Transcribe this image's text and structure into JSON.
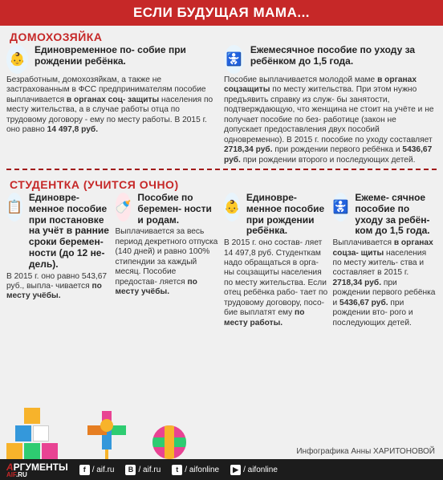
{
  "header": "ЕСЛИ БУДУЩАЯ МАМА...",
  "section1": {
    "title": "ДОМОХОЗЯЙКА",
    "items": [
      {
        "icon_bg": "#e8f4fc",
        "icon_glyph": "👶",
        "title": "Единовременное по-\nсобие при рождении\nребёнка.",
        "body": "Безработным, домохозяйкам,\nа также не застрахованным в ФСС\nпредпринимателям пособие\nвыплачивается",
        "bold1": " в органах соц-\nзащиты ",
        "body2": "населения по месту\nжительства, а в случае работы\nотца по трудовому договору - ему\nпо месту работы. В 2015 г. оно\nравно ",
        "bold2": "14 497,8 руб."
      },
      {
        "icon_bg": "#e8f4fc",
        "icon_glyph": "👶🏻",
        "title": "Ежемесячное пособие по уходу\nза ребёнком до 1,5 года.",
        "body": "Пособие выплачивается молодой маме\n",
        "bold1": "в органах соцзащиты",
        "body2": " по месту жительства.\nПри этом нужно предъявить справку из служ-\nбы занятости, подтверждающую, что женщина\nне стоит на учёте и не получает пособие по без-\nработице (закон не допускает предоставления\nдвух пособий одновременно). В 2015 г. пособие\nпо уходу составляет ",
        "bold2": "2718,34 руб.",
        "body3": " при рождении\nпервого ребёнка и ",
        "bold3": "5436,67 руб.",
        "body4": " при рождении\nвторого и последующих детей."
      }
    ]
  },
  "section2": {
    "title": "СТУДЕНТКА (УЧИТСЯ ОЧНО)",
    "items": [
      {
        "icon_bg": "#e8f4fc",
        "icon_glyph": "📋",
        "title": "Единовре-\nменное пособие\nпри постановке\nна учёт в ранние\nсроки беремен-\nности (до 12 не-\nдель).",
        "body": "В 2015 г. оно равно\n543,67 руб., выпла-\nчивается ",
        "bold1": "по месту\nучёбы."
      },
      {
        "icon_bg": "#ffe6ea",
        "icon_glyph": "🍼",
        "title": "Пособие\nпо беремен-\nности и родам.",
        "body": "Выплачивается\nза весь период\nдекретного отпуска\n(140 дней) и равно\n100% стипендии\nза каждый месяц.\nПособие предостав-\nляется ",
        "bold1": "по месту\nучёбы."
      },
      {
        "icon_bg": "#e8f4fc",
        "icon_glyph": "👶",
        "title": "Единовре-\nменное пособие\nпри рождении\nребёнка.",
        "body": "В 2015 г. оно состав-\nляет 14 497,8 руб.\nСтуденткам надо\nобращаться в орга-\nны соцзащиты\nнаселения по месту\nжительства. Если\nотец ребёнка рабо-\nтает по трудовому\nдоговору, посо-\nбие выплатят ему\n",
        "bold1": "по месту работы."
      },
      {
        "icon_bg": "#e8f4fc",
        "icon_glyph": "👶🏻",
        "title": "Ежеме-\nсячное пособие\nпо уходу за ребён-\nком до 1,5 года.",
        "body": "Выплачивается\n",
        "bold1": "в органах соцза-\nщиты",
        "body2": " населения\nпо месту житель-\nства и составляет\nв 2015 г.\n",
        "bold2": "2718,34 руб.",
        "body3": "\nпри рождении\nпервого ребёнка\nи ",
        "bold3": "5436,67 руб.",
        "body4": "\nпри рождении вто-\nрого и последующих\nдетей."
      }
    ]
  },
  "credit": "Инфографика Анны ХАРИТОНОВОЙ",
  "footer": {
    "logo_top": "АРГУМЕНТЫ",
    "logo_bottom": "AIF.RU",
    "socials": [
      {
        "icon": "f",
        "text": "/ aif.ru"
      },
      {
        "icon": "B",
        "text": "/ aif.ru"
      },
      {
        "icon": "t",
        "text": "/ aifonline"
      },
      {
        "icon": "y",
        "text": "/ aifonline"
      }
    ]
  }
}
